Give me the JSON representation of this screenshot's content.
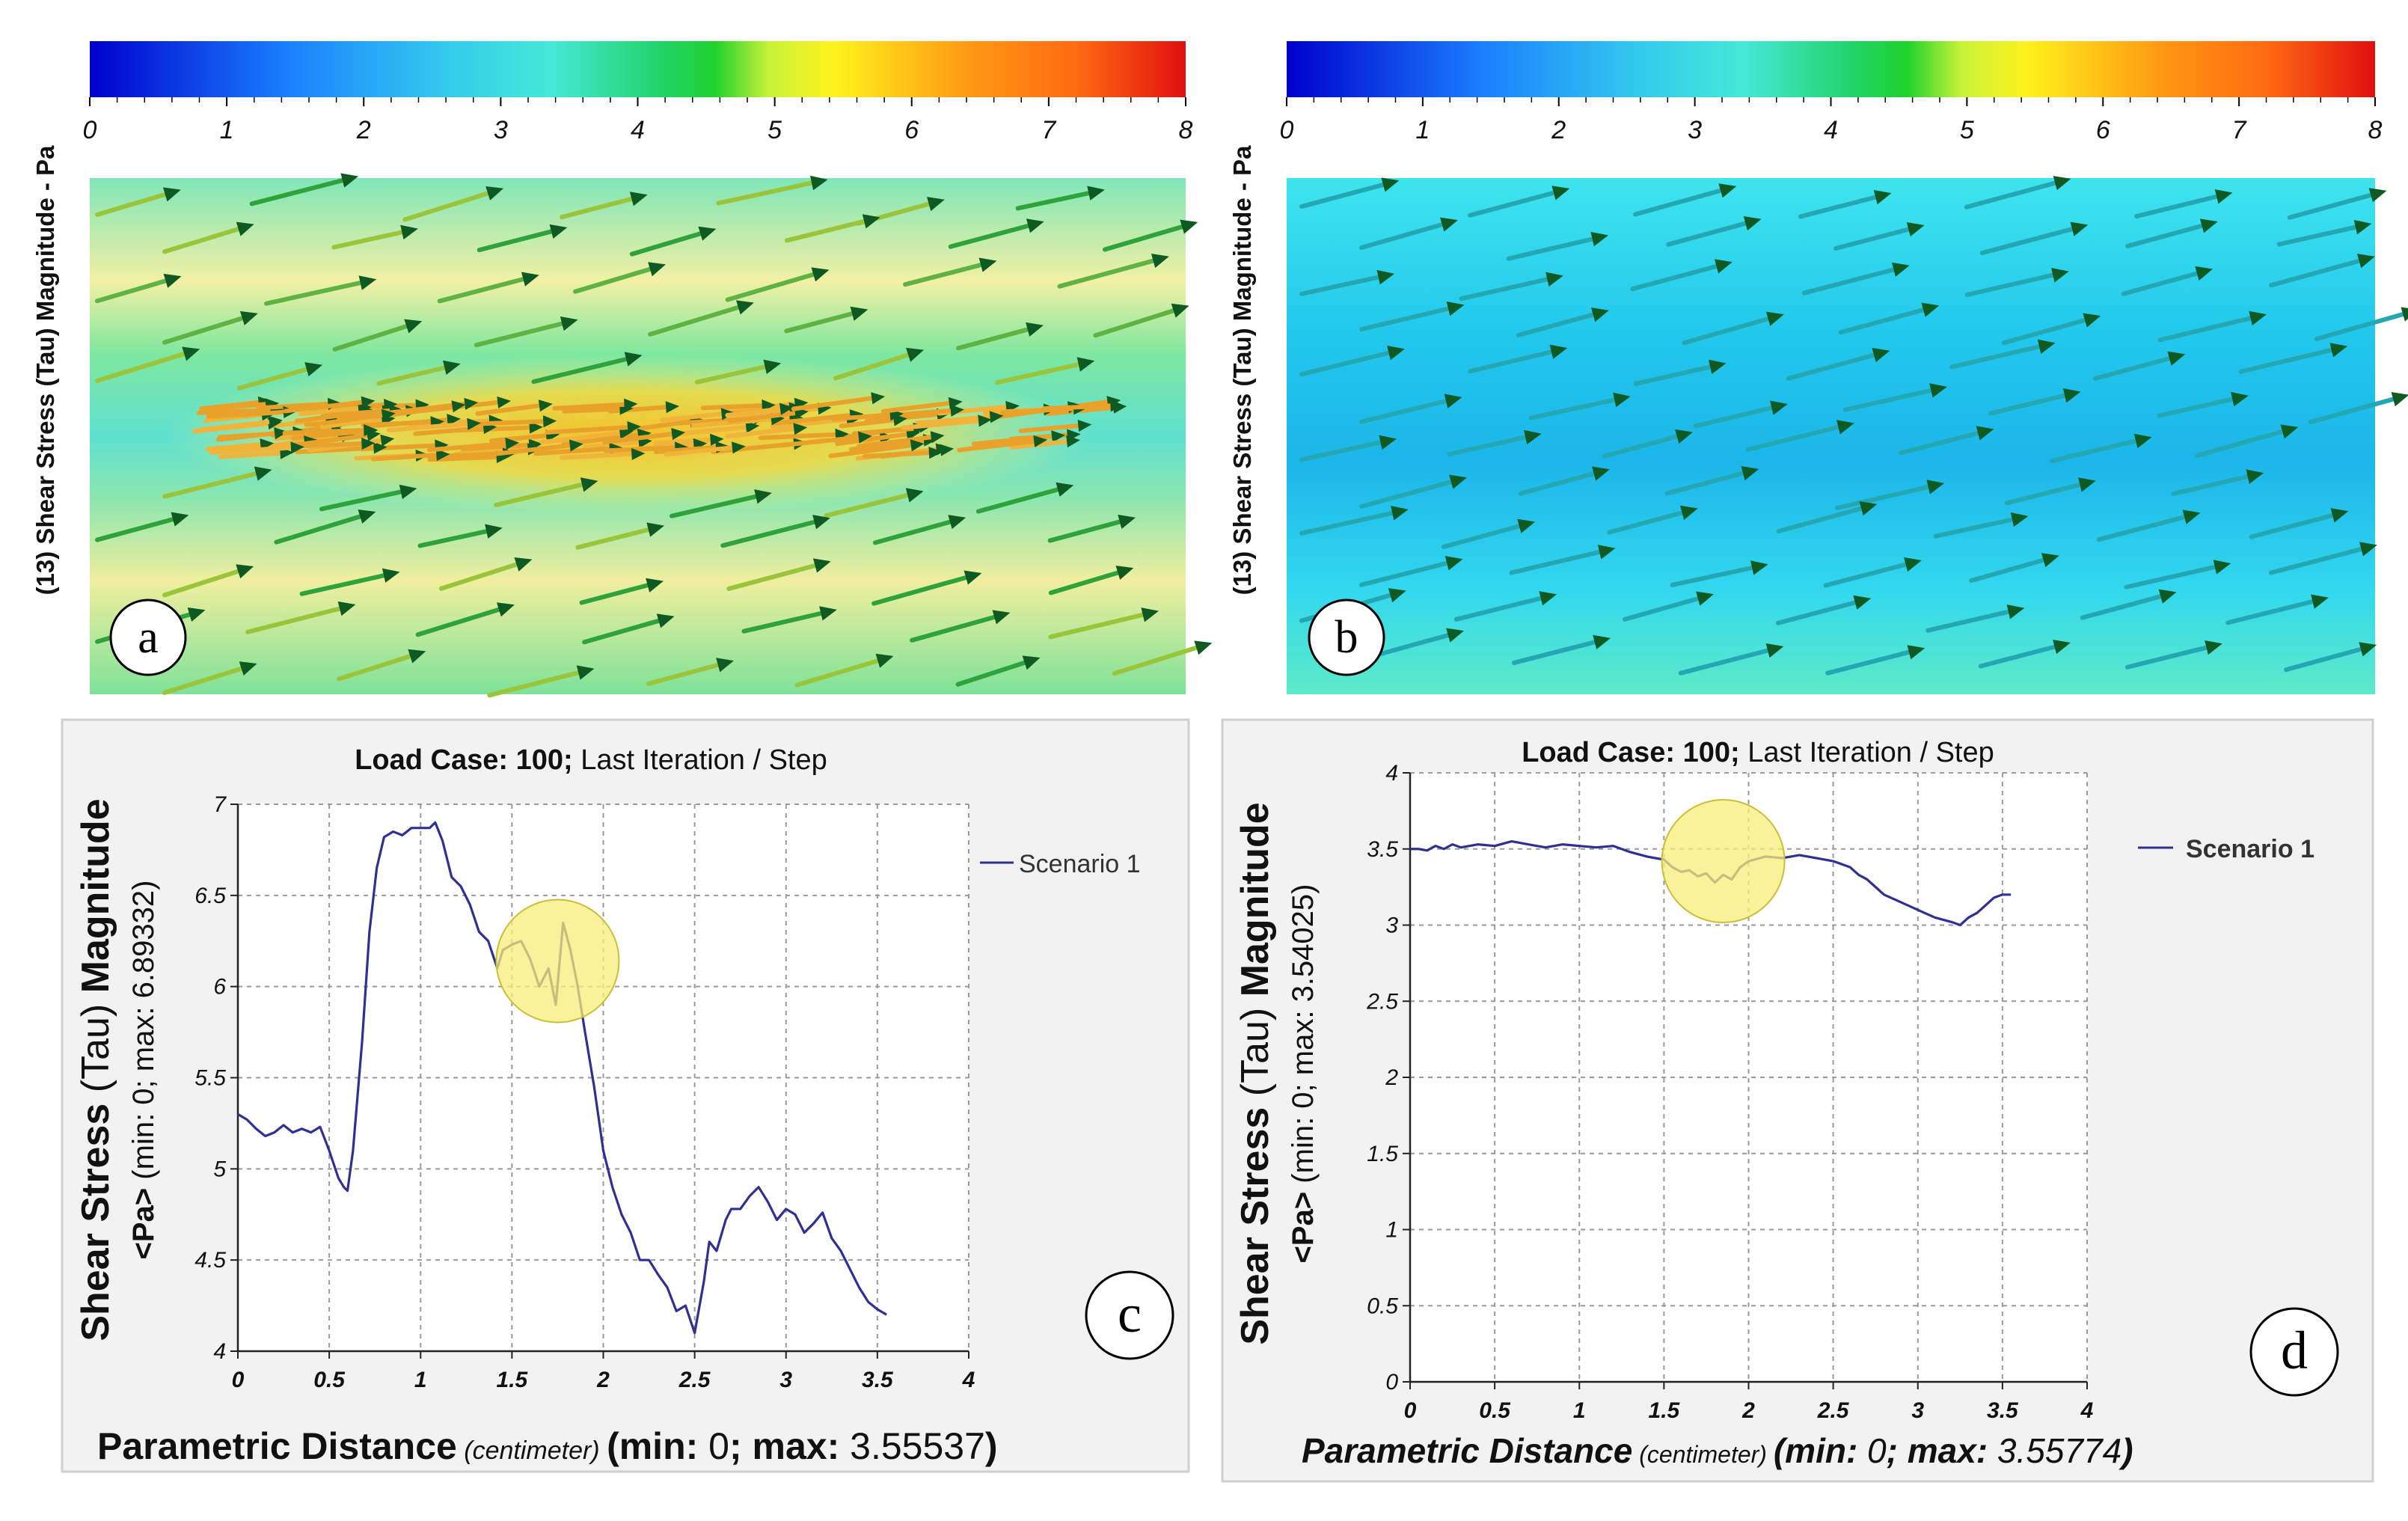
{
  "panels": {
    "a": {
      "letter": "a",
      "colorbar_label": "(13) Shear Stress (Tau) Magnitude - Pa",
      "ticks": [
        "0",
        "1",
        "2",
        "3",
        "4",
        "5",
        "6",
        "7",
        "8"
      ]
    },
    "b": {
      "letter": "b",
      "colorbar_label": "(13) Shear Stress (Tau) Magnitude - Pa",
      "ticks": [
        "0",
        "1",
        "2",
        "3",
        "4",
        "5",
        "6",
        "7",
        "8"
      ]
    },
    "c": {
      "letter": "c"
    },
    "d": {
      "letter": "d"
    }
  },
  "colors": {
    "line": "#2e3192",
    "highlight": "#f7ee7a",
    "frame_bg": "#f2f2f2"
  },
  "chart_data": [
    {
      "id": "c",
      "type": "line",
      "title_bold": "Load Case: 100;",
      "title_rest": " Last Iteration / Step",
      "ylabel_bold": "Shear Stress",
      "ylabel_paren": " (Tau) ",
      "ylabel_bold2": "Magnitude",
      "ylabel2_bold": "<Pa>",
      "ylabel2_rest": " (min: 0; max: 6.89332)",
      "xlabel_bold": "Parametric Distance",
      "xlabel_unit": " (centimeter) ",
      "xlabel_min_bold": "(min: ",
      "xlabel_min_val": "0",
      "xlabel_max_bold": "; max: ",
      "xlabel_max_val": "3.55537",
      "xlabel_close": ")",
      "legend": "Scenario 1",
      "xlim": [
        0,
        4
      ],
      "ylim": [
        4,
        7
      ],
      "xticks": [
        0,
        0.5,
        1,
        1.5,
        2,
        2.5,
        3,
        3.5,
        4
      ],
      "yticks": [
        4,
        4.5,
        5,
        5.5,
        6,
        6.5,
        7
      ],
      "highlight_center": [
        1.75,
        6.14
      ],
      "series": [
        {
          "name": "Scenario 1",
          "x": [
            0,
            0.05,
            0.1,
            0.15,
            0.2,
            0.25,
            0.3,
            0.35,
            0.4,
            0.45,
            0.5,
            0.55,
            0.58,
            0.6,
            0.63,
            0.68,
            0.72,
            0.76,
            0.8,
            0.85,
            0.9,
            0.95,
            1.0,
            1.05,
            1.08,
            1.12,
            1.17,
            1.22,
            1.27,
            1.32,
            1.37,
            1.42,
            1.45,
            1.5,
            1.55,
            1.6,
            1.65,
            1.7,
            1.74,
            1.78,
            1.82,
            1.86,
            1.9,
            1.95,
            2.0,
            2.05,
            2.1,
            2.15,
            2.2,
            2.25,
            2.3,
            2.35,
            2.4,
            2.45,
            2.5,
            2.55,
            2.58,
            2.62,
            2.67,
            2.7,
            2.75,
            2.8,
            2.85,
            2.9,
            2.95,
            3.0,
            3.05,
            3.1,
            3.15,
            3.2,
            3.25,
            3.3,
            3.35,
            3.4,
            3.45,
            3.5,
            3.55
          ],
          "y": [
            5.3,
            5.27,
            5.22,
            5.18,
            5.2,
            5.24,
            5.2,
            5.22,
            5.2,
            5.23,
            5.1,
            4.95,
            4.9,
            4.88,
            5.1,
            5.7,
            6.3,
            6.65,
            6.82,
            6.85,
            6.83,
            6.87,
            6.87,
            6.87,
            6.9,
            6.8,
            6.6,
            6.55,
            6.45,
            6.3,
            6.25,
            6.1,
            6.2,
            6.23,
            6.25,
            6.15,
            6.0,
            6.1,
            5.9,
            6.35,
            6.2,
            6.0,
            5.75,
            5.45,
            5.1,
            4.9,
            4.75,
            4.65,
            4.5,
            4.5,
            4.42,
            4.35,
            4.22,
            4.25,
            4.1,
            4.38,
            4.6,
            4.55,
            4.72,
            4.78,
            4.78,
            4.85,
            4.9,
            4.82,
            4.72,
            4.78,
            4.75,
            4.65,
            4.7,
            4.76,
            4.62,
            4.55,
            4.45,
            4.35,
            4.27,
            4.23,
            4.2
          ]
        }
      ]
    },
    {
      "id": "d",
      "type": "line",
      "title_bold": "Load Case: 100;",
      "title_rest": " Last Iteration / Step",
      "ylabel_bold": "Shear Stress",
      "ylabel_paren": " (Tau) ",
      "ylabel_bold2": "Magnitude",
      "ylabel2_bold": "<Pa>",
      "ylabel2_rest": " (min: 0; max: 3.54025)",
      "xlabel_bold": "Parametric Distance",
      "xlabel_unit": " (centimeter) ",
      "xlabel_min_bold": "(min: ",
      "xlabel_min_val": "0",
      "xlabel_max_bold": "; max: ",
      "xlabel_max_val": "3.55774",
      "xlabel_close": ")",
      "legend": "Scenario 1",
      "xlim": [
        0,
        4
      ],
      "ylim": [
        0,
        4
      ],
      "xticks": [
        0,
        0.5,
        1,
        1.5,
        2,
        2.5,
        3,
        3.5,
        4
      ],
      "yticks": [
        0,
        0.5,
        1,
        1.5,
        2,
        2.5,
        3,
        3.5,
        4
      ],
      "highlight_center": [
        1.85,
        3.42
      ],
      "series": [
        {
          "name": "Scenario 1",
          "x": [
            0,
            0.05,
            0.1,
            0.15,
            0.2,
            0.25,
            0.3,
            0.35,
            0.4,
            0.5,
            0.6,
            0.7,
            0.8,
            0.9,
            1.0,
            1.1,
            1.2,
            1.3,
            1.4,
            1.5,
            1.55,
            1.6,
            1.65,
            1.7,
            1.75,
            1.8,
            1.85,
            1.9,
            1.95,
            2.0,
            2.1,
            2.2,
            2.3,
            2.4,
            2.5,
            2.6,
            2.65,
            2.7,
            2.75,
            2.8,
            2.9,
            3.0,
            3.1,
            3.2,
            3.25,
            3.3,
            3.35,
            3.4,
            3.45,
            3.5,
            3.55
          ],
          "y": [
            3.5,
            3.5,
            3.49,
            3.52,
            3.5,
            3.53,
            3.51,
            3.52,
            3.53,
            3.52,
            3.55,
            3.53,
            3.51,
            3.53,
            3.52,
            3.51,
            3.52,
            3.48,
            3.45,
            3.43,
            3.38,
            3.35,
            3.36,
            3.32,
            3.34,
            3.28,
            3.33,
            3.3,
            3.38,
            3.42,
            3.45,
            3.44,
            3.46,
            3.44,
            3.42,
            3.38,
            3.33,
            3.3,
            3.25,
            3.2,
            3.15,
            3.1,
            3.05,
            3.02,
            3.0,
            3.05,
            3.08,
            3.13,
            3.18,
            3.2,
            3.2
          ]
        }
      ]
    }
  ]
}
